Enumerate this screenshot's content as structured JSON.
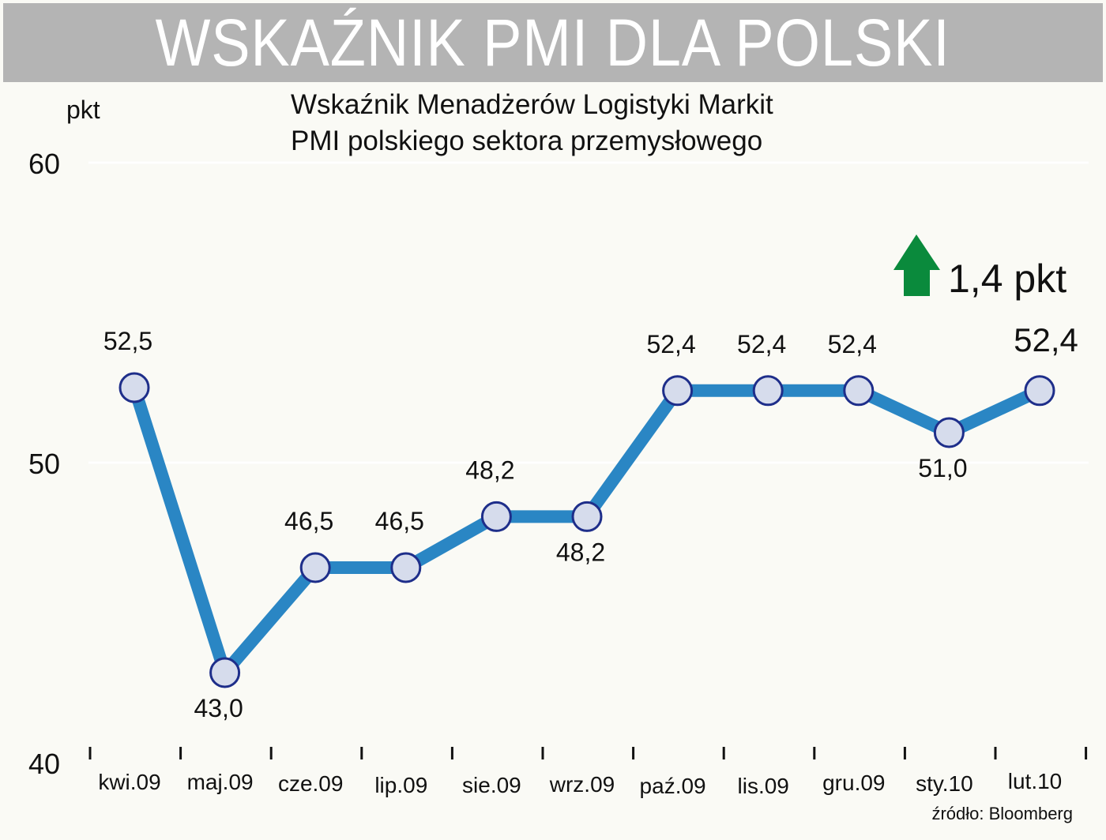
{
  "banner": {
    "title": "WSKAŹNIK PMI DLA POLSKI"
  },
  "chart_data": {
    "type": "line",
    "title": "Wskaźnik Menadżerów Logistyki Markit",
    "subtitle": "PMI polskiego sektora przemysłowego",
    "ylabel": "pkt",
    "xlabel": "",
    "ylim": [
      40,
      60
    ],
    "yticks": [
      "40",
      "50",
      "60"
    ],
    "grid": true,
    "categories": [
      "kwi.09",
      "maj.09",
      "cze.09",
      "lip.09",
      "sie.09",
      "wrz.09",
      "paź.09",
      "lis.09",
      "gru.09",
      "sty.10",
      "lut.10"
    ],
    "series": [
      {
        "values": [
          52.5,
          43.0,
          46.5,
          46.5,
          48.2,
          48.2,
          52.4,
          52.4,
          52.4,
          51.0,
          52.4
        ],
        "labels": [
          "52,5",
          "43,0",
          "46,5",
          "46,5",
          "48,2",
          "48,2",
          "52,4",
          "52,4",
          "52,4",
          "51,0",
          "52,4"
        ],
        "color": "#2a86c4",
        "marker_color": "#d6dcec",
        "marker_edge": "#1e2e8a"
      }
    ],
    "annotation": {
      "text": "1,4 pkt",
      "arrow": "up-arrow",
      "arrow_color": "#0a8a3c"
    },
    "source": "źródło: Bloomberg"
  }
}
